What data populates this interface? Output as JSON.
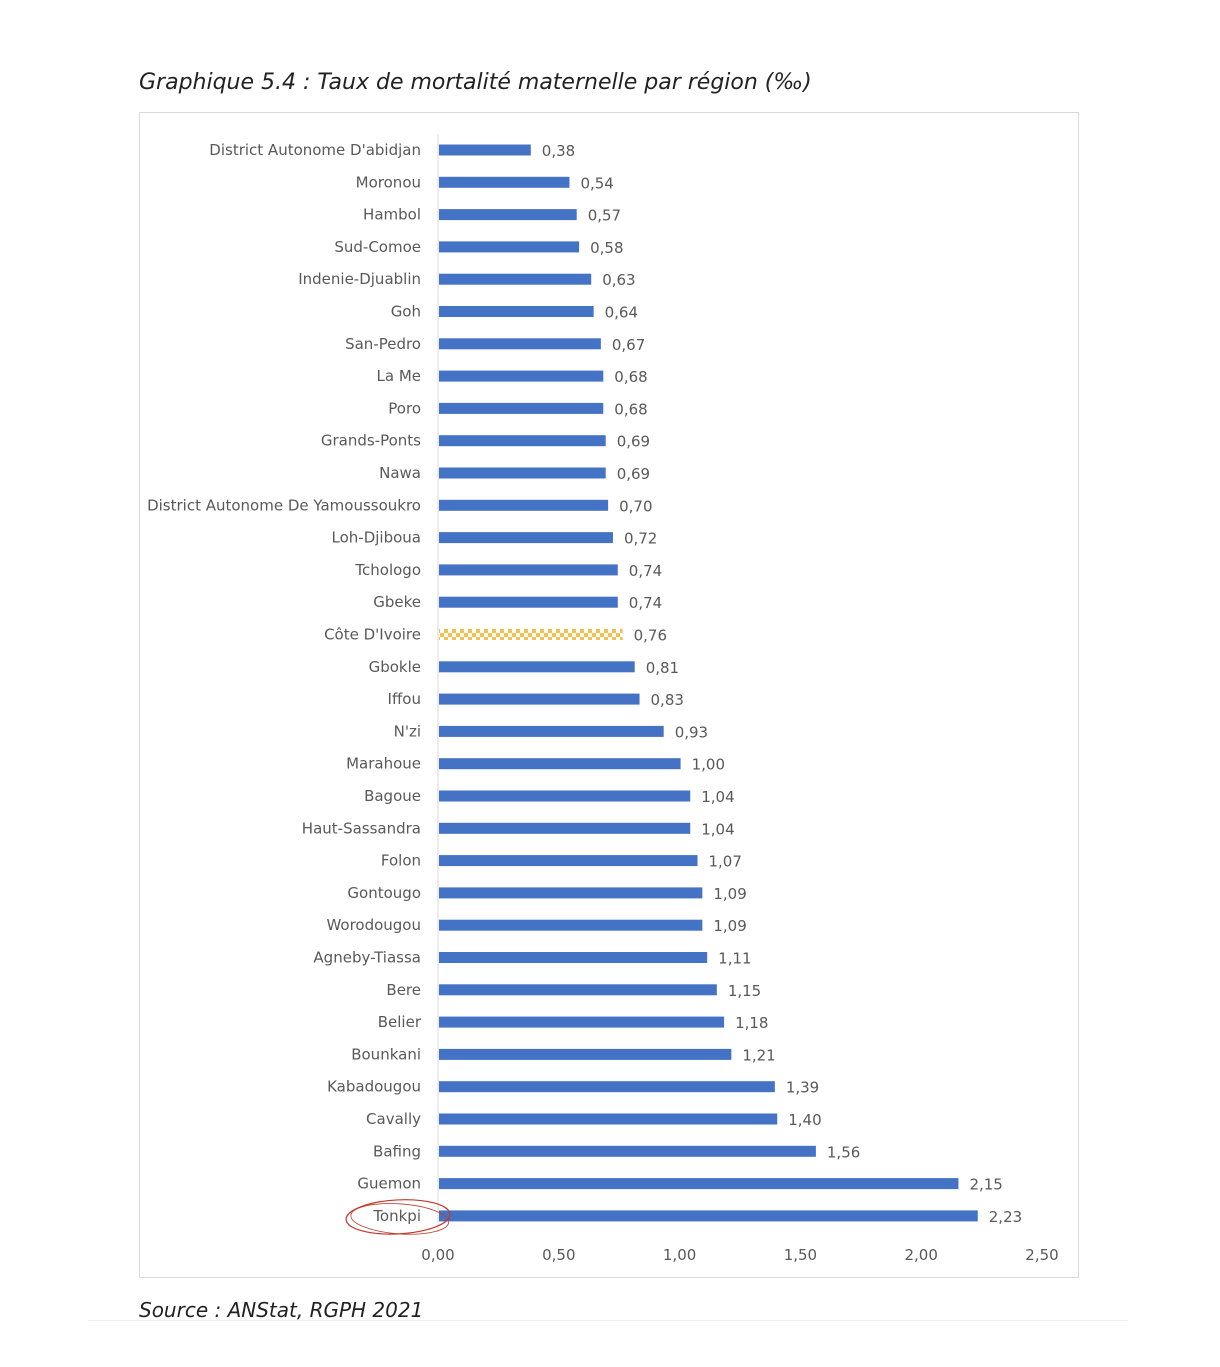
{
  "title": "Graphique 5.4 : Taux de mortalité maternelle par région (‰)",
  "source": "Source : ANStat, RGPH 2021",
  "colors": {
    "bar": "#4472c4",
    "highlight": "#f2c14e",
    "highlight_check": "#ffffff",
    "circle": "#c0392b",
    "text": "#595959",
    "axis": "#d9d9d9"
  },
  "chart_data": {
    "type": "bar",
    "orientation": "horizontal",
    "categories": [
      "District Autonome D'abidjan",
      "Moronou",
      "Hambol",
      "Sud-Comoe",
      "Indenie-Djuablin",
      "Goh",
      "San-Pedro",
      "La Me",
      "Poro",
      "Grands-Ponts",
      "Nawa",
      "District Autonome De Yamoussoukro",
      "Loh-Djiboua",
      "Tchologo",
      "Gbeke",
      "Côte D'Ivoire",
      "Gbokle",
      "Iffou",
      "N'zi",
      "Marahoue",
      "Bagoue",
      "Haut-Sassandra",
      "Folon",
      "Gontougo",
      "Worodougou",
      "Agneby-Tiassa",
      "Bere",
      "Belier",
      "Bounkani",
      "Kabadougou",
      "Cavally",
      "Bafing",
      "Guemon",
      "Tonkpi"
    ],
    "values": [
      0.38,
      0.54,
      0.57,
      0.58,
      0.63,
      0.64,
      0.67,
      0.68,
      0.68,
      0.69,
      0.69,
      0.7,
      0.72,
      0.74,
      0.74,
      0.76,
      0.81,
      0.83,
      0.93,
      1.0,
      1.04,
      1.04,
      1.07,
      1.09,
      1.09,
      1.11,
      1.15,
      1.18,
      1.21,
      1.39,
      1.4,
      1.56,
      2.15,
      2.23
    ],
    "value_labels": [
      "0,38",
      "0,54",
      "0,57",
      "0,58",
      "0,63",
      "0,64",
      "0,67",
      "0,68",
      "0,68",
      "0,69",
      "0,69",
      "0,70",
      "0,72",
      "0,74",
      "0,74",
      "0,76",
      "0,81",
      "0,83",
      "0,93",
      "1,00",
      "1,04",
      "1,04",
      "1,07",
      "1,09",
      "1,09",
      "1,11",
      "1,15",
      "1,18",
      "1,21",
      "1,39",
      "1,40",
      "1,56",
      "2,15",
      "2,23"
    ],
    "xlim": [
      0,
      2.5
    ],
    "xticks": [
      0,
      0.5,
      1.0,
      1.5,
      2.0,
      2.5
    ],
    "xtick_labels": [
      "0,00",
      "0,50",
      "1,00",
      "1,50",
      "2,00",
      "2,50"
    ],
    "highlight_category": "Côte D'Ivoire",
    "circled_category": "Tonkpi",
    "grid": false,
    "legend": "none"
  }
}
